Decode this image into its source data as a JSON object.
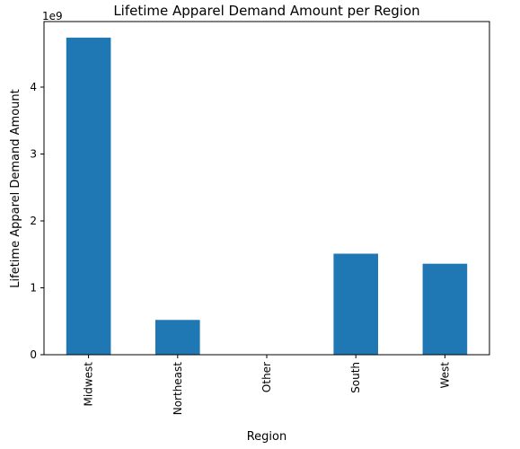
{
  "chart_data": {
    "type": "bar",
    "title": "Lifetime Apparel Demand Amount per Region",
    "xlabel": "Region",
    "ylabel": "Lifetime Apparel Demand Amount",
    "offset_label": "1e9",
    "categories": [
      "Midwest",
      "Northeast",
      "Other",
      "South",
      "West"
    ],
    "values": [
      4.74,
      0.52,
      0.0,
      1.51,
      1.36
    ],
    "value_scale": 1000000000,
    "ylim": [
      0,
      4.98
    ],
    "yticks": [
      0,
      1,
      2,
      3,
      4
    ],
    "ytick_labels": [
      "0",
      "1",
      "2",
      "3",
      "4"
    ],
    "bar_color": "#1f77b4",
    "grid": false,
    "legend": false
  }
}
